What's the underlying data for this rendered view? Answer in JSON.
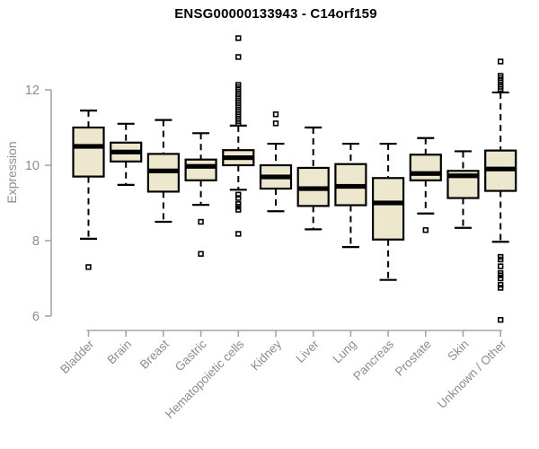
{
  "chart_data": {
    "type": "boxplot",
    "title": "ENSG00000133943 - C14orf159",
    "ylabel": "Expression",
    "xlabel": "",
    "y_ticks": [
      6,
      8,
      10,
      12
    ],
    "ylim": [
      5.7,
      13.5
    ],
    "grid": false,
    "legend": "none",
    "colors": {
      "box_fill": "#EDE8CD",
      "box_border": "#000000",
      "median": "#000000",
      "whisker": "#000000",
      "axis_line": "#A6A6A6",
      "tick_label": "#8C8C8C",
      "title": "#000000",
      "background": "#FFFFFF"
    },
    "categories": [
      "Bladder",
      "Brain",
      "Breast",
      "Gastric",
      "Hematopoietic cells",
      "Kidney",
      "Liver",
      "Lung",
      "Pancreas",
      "Prostate",
      "Skin",
      "Unknown / Other"
    ],
    "boxes": [
      {
        "category": "Bladder",
        "whisker_low": 8.05,
        "q1": 9.7,
        "median": 10.5,
        "q3": 11.0,
        "whisker_high": 11.45,
        "outliers": [
          7.3
        ]
      },
      {
        "category": "Brain",
        "whisker_low": 9.48,
        "q1": 10.1,
        "median": 10.35,
        "q3": 10.6,
        "whisker_high": 11.1,
        "outliers": []
      },
      {
        "category": "Breast",
        "whisker_low": 8.5,
        "q1": 9.3,
        "median": 9.85,
        "q3": 10.3,
        "whisker_high": 11.2,
        "outliers": []
      },
      {
        "category": "Gastric",
        "whisker_low": 8.95,
        "q1": 9.6,
        "median": 9.97,
        "q3": 10.15,
        "whisker_high": 10.85,
        "outliers": [
          8.5,
          7.65
        ]
      },
      {
        "category": "Hematopoietic cells",
        "whisker_low": 9.35,
        "q1": 10.0,
        "median": 10.2,
        "q3": 10.4,
        "whisker_high": 11.05,
        "outliers": [
          13.37,
          12.87,
          12.13,
          12.07,
          12.01,
          11.95,
          11.89,
          11.83,
          11.77,
          11.71,
          11.65,
          11.59,
          11.53,
          11.47,
          11.41,
          11.35,
          11.29,
          11.23,
          11.17,
          11.11,
          9.22,
          9.13,
          8.97,
          8.9,
          8.82,
          8.18
        ]
      },
      {
        "category": "Kidney",
        "whisker_low": 8.78,
        "q1": 9.38,
        "median": 9.69,
        "q3": 10.0,
        "whisker_high": 10.57,
        "outliers": [
          11.35,
          11.11
        ]
      },
      {
        "category": "Liver",
        "whisker_low": 8.3,
        "q1": 8.92,
        "median": 9.38,
        "q3": 9.93,
        "whisker_high": 11.0,
        "outliers": []
      },
      {
        "category": "Lung",
        "whisker_low": 7.83,
        "q1": 8.94,
        "median": 9.44,
        "q3": 10.03,
        "whisker_high": 10.57,
        "outliers": []
      },
      {
        "category": "Pancreas",
        "whisker_low": 6.96,
        "q1": 8.03,
        "median": 9.0,
        "q3": 9.66,
        "whisker_high": 10.57,
        "outliers": []
      },
      {
        "category": "Prostate",
        "whisker_low": 8.72,
        "q1": 9.6,
        "median": 9.78,
        "q3": 10.28,
        "whisker_high": 10.72,
        "outliers": [
          8.28
        ]
      },
      {
        "category": "Skin",
        "whisker_low": 8.34,
        "q1": 9.13,
        "median": 9.72,
        "q3": 9.85,
        "whisker_high": 10.37,
        "outliers": []
      },
      {
        "category": "Unknown / Other",
        "whisker_low": 7.97,
        "q1": 9.32,
        "median": 9.9,
        "q3": 10.39,
        "whisker_high": 11.93,
        "outliers": [
          12.75,
          12.37,
          12.31,
          12.25,
          12.2,
          12.14,
          12.08,
          12.02,
          7.57,
          7.5,
          7.32,
          7.14,
          7.08,
          7.0,
          6.83,
          6.75,
          5.9
        ]
      }
    ]
  }
}
